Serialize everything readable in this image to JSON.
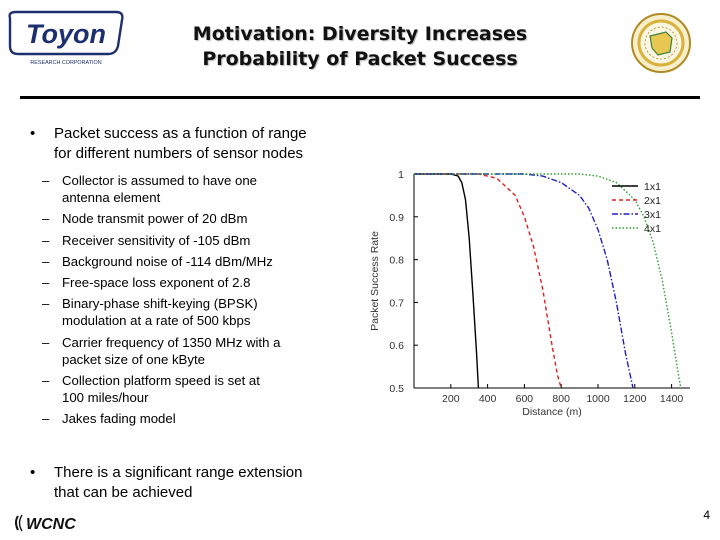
{
  "slide": {
    "logo_text": "Toyon",
    "logo_subtext": "RESEARCH CORPORATION",
    "title_line1": "Motivation: Diversity Increases",
    "title_line2": "Probability of Packet Success",
    "bullet1_line1": "Packet success as a function of range",
    "bullet1_line2": "for different numbers of sensor nodes",
    "bullet_marker": "•",
    "dash_marker": "–",
    "sub_bullets": [
      {
        "lines": [
          "Collector is assumed to have one",
          "antenna element"
        ]
      },
      {
        "lines": [
          "Node transmit power of 20 dBm"
        ]
      },
      {
        "lines": [
          "Receiver sensitivity of -105 dBm"
        ]
      },
      {
        "lines": [
          "Background noise of -114 dBm/MHz"
        ]
      },
      {
        "lines": [
          "Free-space loss exponent of 2.8"
        ]
      },
      {
        "lines": [
          "Binary-phase shift-keying (BPSK)",
          "modulation at a rate of 500 kbps"
        ]
      },
      {
        "lines": [
          "Carrier frequency of 1350 MHz with a",
          "packet size of one kByte"
        ]
      },
      {
        "lines": [
          "Collection platform speed is set at",
          "100 miles/hour"
        ]
      },
      {
        "lines": [
          "Jakes fading model"
        ]
      }
    ],
    "bullet2_line1": "There is a significant range extension",
    "bullet2_line2": "that can be achieved",
    "footer_logo_text": "WCNC",
    "page_number": "4"
  },
  "colors": {
    "rule": "#000000",
    "logo_navy": "#1d2f6f",
    "seal_gold": "#d8b23a",
    "seal_green": "#3f7f3f"
  },
  "chart_data": {
    "type": "line",
    "xlabel": "Distance (m)",
    "ylabel": "Packet Success Rate",
    "xlim": [
      0,
      1500
    ],
    "ylim": [
      0.5,
      1.0
    ],
    "x_ticks": [
      "200",
      "400",
      "600",
      "800",
      "1000",
      "1200",
      "1400"
    ],
    "y_ticks": [
      "1",
      "0.9",
      "0.8",
      "0.7",
      "0.6",
      "0.5"
    ],
    "legend_position": "top-right",
    "series": [
      {
        "name": "1x1",
        "color": "#000000",
        "dash": "solid",
        "x": [
          0,
          200,
          240,
          260,
          280,
          300,
          320,
          340,
          350
        ],
        "y": [
          1.0,
          1.0,
          0.995,
          0.98,
          0.94,
          0.85,
          0.72,
          0.58,
          0.5
        ]
      },
      {
        "name": "2x1",
        "color": "#e0201c",
        "dash": "dashed",
        "x": [
          0,
          350,
          450,
          500,
          550,
          600,
          650,
          700,
          750,
          780,
          800
        ],
        "y": [
          1.0,
          1.0,
          0.99,
          0.97,
          0.95,
          0.9,
          0.83,
          0.73,
          0.6,
          0.53,
          0.5
        ]
      },
      {
        "name": "3x1",
        "color": "#1e1ec8",
        "dash": "dashdot",
        "x": [
          0,
          600,
          700,
          800,
          900,
          950,
          1000,
          1050,
          1100,
          1150,
          1190
        ],
        "y": [
          1.0,
          1.0,
          0.995,
          0.98,
          0.95,
          0.92,
          0.87,
          0.8,
          0.7,
          0.58,
          0.5
        ]
      },
      {
        "name": "4x1",
        "color": "#2aa02a",
        "dash": "dotted",
        "x": [
          0,
          900,
          1000,
          1100,
          1200,
          1250,
          1300,
          1350,
          1400,
          1430,
          1450
        ],
        "y": [
          1.0,
          1.0,
          0.995,
          0.98,
          0.94,
          0.9,
          0.84,
          0.75,
          0.63,
          0.55,
          0.5
        ]
      }
    ]
  }
}
